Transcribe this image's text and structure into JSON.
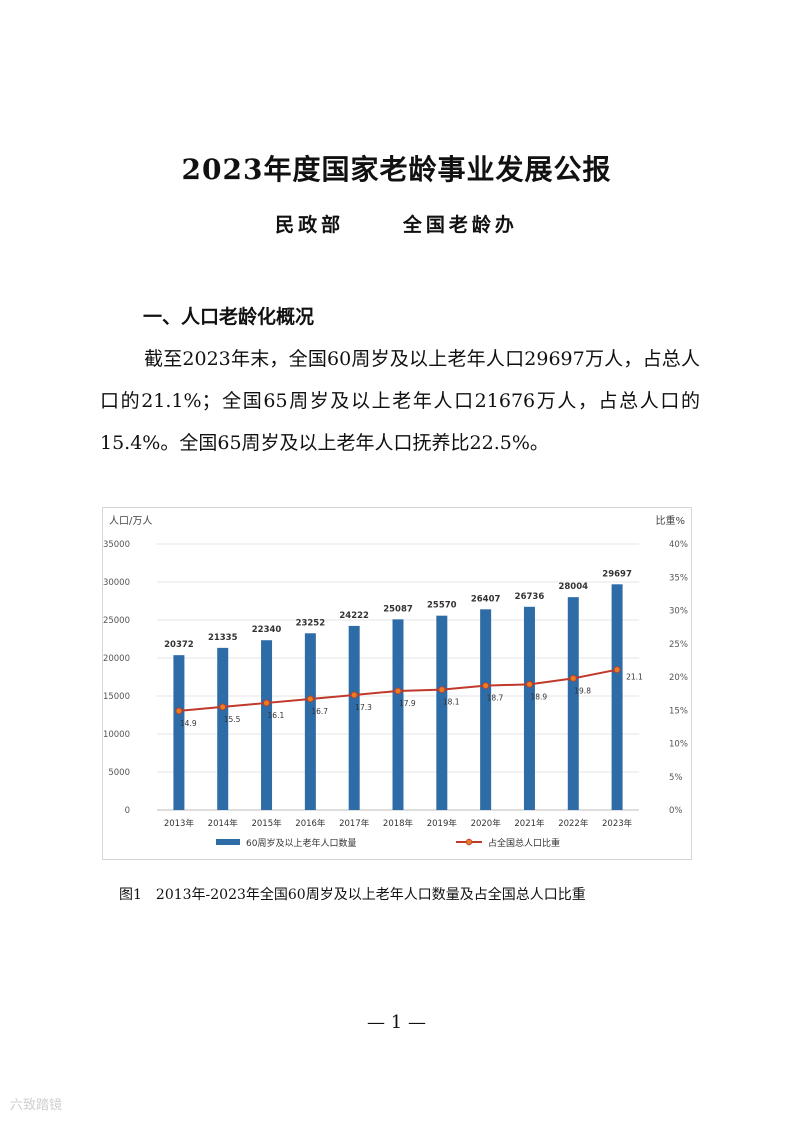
{
  "document": {
    "title": "2023年度国家老龄事业发展公报",
    "authors": [
      "民政部",
      "全国老龄办"
    ],
    "section_heading": "一、人口老龄化概况",
    "paragraph": "截至2023年末，全国60周岁及以上老年人口29697万人，占总人口的21.1%；全国65周岁及以上老年人口21676万人，占总人口的15.4%。全国65周岁及以上老年人口抚养比22.5%。",
    "caption": "图1　2013年-2023年全国60周岁及以上老年人口数量及占全国总人口比重",
    "page_number": "— 1 —",
    "watermark": "六致踏镜"
  },
  "colors": {
    "bar": "#2e6ca7",
    "line": "#c0392b",
    "marker": "#e67e22",
    "grid": "#e6e6e6"
  },
  "chart_data": {
    "type": "bar",
    "categories": [
      "2013年",
      "2014年",
      "2015年",
      "2016年",
      "2017年",
      "2018年",
      "2019年",
      "2020年",
      "2021年",
      "2022年",
      "2023年"
    ],
    "series": [
      {
        "name": "60周岁及以上老年人口数量",
        "type": "bar",
        "axis": "left",
        "values": [
          20372,
          21335,
          22340,
          23252,
          24222,
          25087,
          25570,
          26407,
          26736,
          28004,
          29697
        ]
      },
      {
        "name": "占全国总人口比重",
        "type": "line",
        "axis": "right",
        "values": [
          14.9,
          15.5,
          16.1,
          16.7,
          17.3,
          17.9,
          18.1,
          18.7,
          18.9,
          19.8,
          21.1
        ]
      }
    ],
    "ylabel": "人口/万人",
    "y2label": "比重%",
    "ylim": [
      0,
      35000
    ],
    "yticks": [
      "0",
      "5000",
      "10000",
      "15000",
      "20000",
      "25000",
      "30000",
      "35000"
    ],
    "y2lim": [
      0,
      40
    ],
    "y2ticks": [
      "0%",
      "5%",
      "10%",
      "15%",
      "20%",
      "25%",
      "30%",
      "35%",
      "40%"
    ],
    "grid": true,
    "legend": "bottom"
  }
}
